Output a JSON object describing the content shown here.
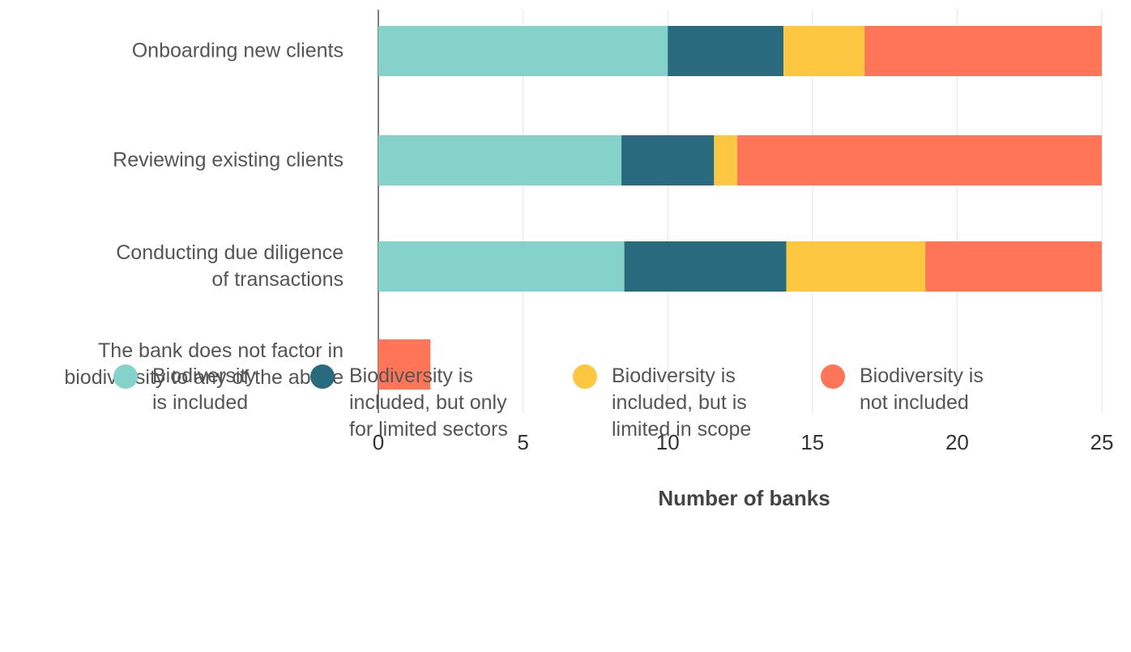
{
  "chart_data": {
    "type": "stacked-bar-horizontal",
    "categories": [
      "Onboarding new clients",
      "Reviewing existing clients",
      "Conducting due diligence\nof transactions",
      "The bank does not factor in\nbiodiversity to any of the above"
    ],
    "series": [
      {
        "name": "Biodiversity\nis included",
        "color": "#84d2ca",
        "values": [
          10.0,
          8.4,
          8.5,
          0
        ]
      },
      {
        "name": "Biodiversity is\nincluded, but only\nfor limited sectors",
        "color": "#2a6a7e",
        "values": [
          4.0,
          3.2,
          5.6,
          0
        ]
      },
      {
        "name": "Biodiversity is\nincluded, but is\nlimited in scope",
        "color": "#fdc742",
        "values": [
          2.8,
          0.8,
          4.8,
          0
        ]
      },
      {
        "name": "Biodiversity is\nnot included",
        "color": "#ff7558",
        "values": [
          8.2,
          12.6,
          6.1,
          1.8
        ]
      }
    ],
    "xlabel": "Number of banks",
    "xlim": [
      0,
      25
    ],
    "xticks": [
      0,
      5,
      10,
      15,
      20,
      25
    ],
    "grid": true
  }
}
